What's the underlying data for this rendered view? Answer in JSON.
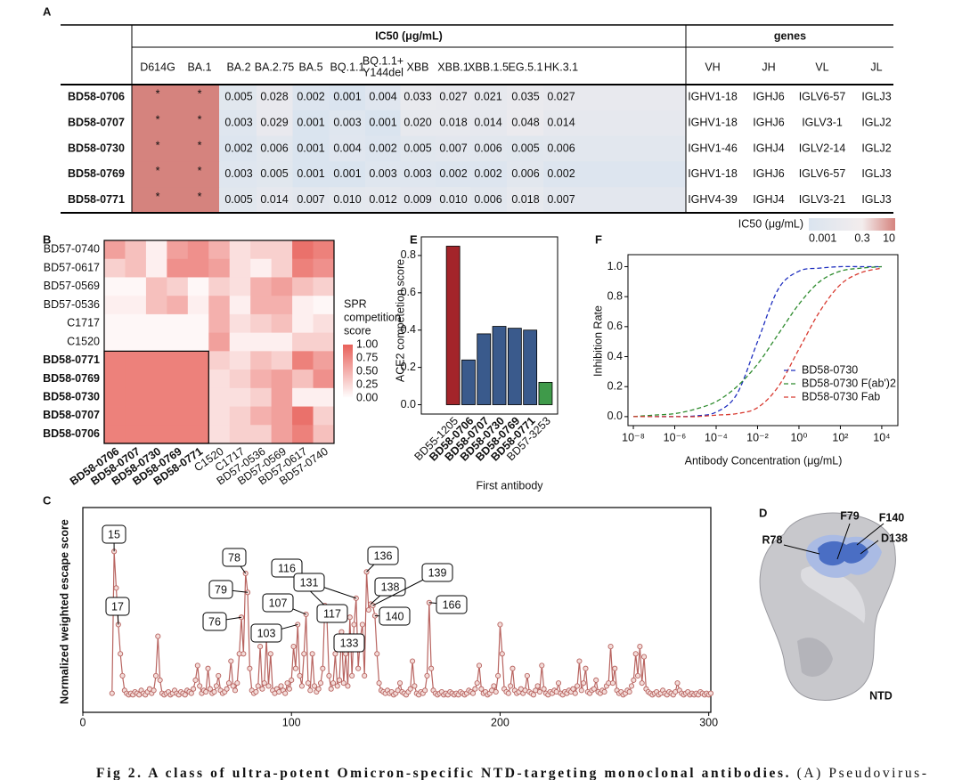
{
  "panel_labels": [
    "A",
    "B",
    "C",
    "D",
    "E",
    "F"
  ],
  "table": {
    "group_headers": [
      "IC50 (μg/mL)",
      "genes"
    ],
    "ic50_columns": [
      "D614G",
      "BA.1",
      "BA.2",
      "BA.2.75",
      "BA.5",
      "BQ.1.1",
      [
        "BQ.1.1+",
        "Y144del"
      ],
      "XBB",
      "XBB.1",
      "XBB.1.5",
      "EG.5.1",
      "HK.3.1"
    ],
    "gene_columns": [
      "VH",
      "JH",
      "VL",
      "JL"
    ],
    "rows": [
      {
        "name": "BD58-0706",
        "ic50": [
          "*",
          "*",
          "0.005",
          "0.028",
          "0.002",
          "0.001",
          "0.004",
          "0.033",
          "0.027",
          "0.021",
          "0.035",
          "0.027"
        ],
        "genes": [
          "IGHV1-18",
          "IGHJ6",
          "IGLV6-57",
          "IGLJ3"
        ]
      },
      {
        "name": "BD58-0707",
        "ic50": [
          "*",
          "*",
          "0.003",
          "0.029",
          "0.001",
          "0.003",
          "0.001",
          "0.020",
          "0.018",
          "0.014",
          "0.048",
          "0.014"
        ],
        "genes": [
          "IGHV1-18",
          "IGHJ6",
          "IGLV3-1",
          "IGLJ2"
        ]
      },
      {
        "name": "BD58-0730",
        "ic50": [
          "*",
          "*",
          "0.002",
          "0.006",
          "0.001",
          "0.004",
          "0.002",
          "0.005",
          "0.007",
          "0.006",
          "0.005",
          "0.006"
        ],
        "genes": [
          "IGHV1-46",
          "IGHJ4",
          "IGLV2-14",
          "IGLJ2"
        ]
      },
      {
        "name": "BD58-0769",
        "ic50": [
          "*",
          "*",
          "0.003",
          "0.005",
          "0.001",
          "0.001",
          "0.003",
          "0.003",
          "0.002",
          "0.002",
          "0.006",
          "0.002"
        ],
        "genes": [
          "IGHV1-18",
          "IGHJ6",
          "IGLV6-57",
          "IGLJ3"
        ]
      },
      {
        "name": "BD58-0771",
        "ic50": [
          "*",
          "*",
          "0.005",
          "0.014",
          "0.007",
          "0.010",
          "0.012",
          "0.009",
          "0.010",
          "0.006",
          "0.018",
          "0.007"
        ],
        "genes": [
          "IGHV4-39",
          "IGHJ4",
          "IGLV3-21",
          "IGLJ3"
        ]
      }
    ],
    "colorscale": {
      "title": "IC50 (μg/mL)",
      "ticks": [
        0.001,
        0.3,
        10
      ],
      "colors": [
        "#dae4ef",
        "#f3eded",
        "#d5837e"
      ]
    }
  },
  "chart_data": [
    {
      "type": "heatmap",
      "rows": [
        "BD57-0740",
        "BD57-0617",
        "BD57-0569",
        "BD57-0536",
        "C1717",
        "C1520",
        "BD58-0771",
        "BD58-0769",
        "BD58-0730",
        "BD58-0707",
        "BD58-0706"
      ],
      "row_bold": [
        false,
        false,
        false,
        false,
        false,
        false,
        true,
        true,
        true,
        true,
        true
      ],
      "columns": [
        "BD58-0706",
        "BD58-0707",
        "BD58-0730",
        "BD58-0769",
        "BD58-0771",
        "C1520",
        "C1717",
        "BD57-0536",
        "BD57-0569",
        "BD57-0617",
        "BD57-0740"
      ],
      "column_bold": [
        true,
        true,
        true,
        true,
        true,
        false,
        false,
        false,
        false,
        false,
        false
      ],
      "values": [
        [
          0.6,
          0.4,
          0.1,
          0.6,
          0.7,
          0.5,
          0.2,
          0.3,
          0.3,
          0.9,
          0.8
        ],
        [
          0.3,
          0.4,
          0.1,
          0.7,
          0.7,
          0.6,
          0.2,
          0.1,
          0.3,
          0.8,
          0.7
        ],
        [
          0.05,
          0.05,
          0.4,
          0.3,
          0.05,
          0.3,
          0.2,
          0.5,
          0.6,
          0.4,
          0.3
        ],
        [
          0.1,
          0.1,
          0.4,
          0.5,
          0.1,
          0.5,
          0.1,
          0.5,
          0.5,
          0.1,
          0.05
        ],
        [
          0.05,
          0.05,
          0.05,
          0.05,
          0.05,
          0.5,
          0.2,
          0.3,
          0.4,
          0.1,
          0.2
        ],
        [
          0.05,
          0.05,
          0.05,
          0.05,
          0.05,
          0.6,
          0.1,
          0.1,
          0.1,
          0.3,
          0.3
        ],
        [
          0.8,
          0.8,
          0.8,
          0.8,
          0.8,
          0.3,
          0.2,
          0.4,
          0.3,
          0.8,
          0.6
        ],
        [
          0.8,
          0.8,
          0.8,
          0.8,
          0.8,
          0.2,
          0.3,
          0.5,
          0.6,
          0.4,
          0.7
        ],
        [
          0.8,
          0.8,
          0.8,
          0.8,
          0.8,
          0.2,
          0.2,
          0.3,
          0.6,
          0.1,
          0.1
        ],
        [
          0.8,
          0.8,
          0.8,
          0.8,
          0.8,
          0.2,
          0.3,
          0.5,
          0.6,
          0.9,
          0.3
        ],
        [
          0.8,
          0.8,
          0.8,
          0.8,
          0.8,
          0.2,
          0.3,
          0.3,
          0.6,
          0.8,
          0.4
        ]
      ],
      "zlim": [
        0,
        1
      ],
      "colors": [
        "#ffffff",
        "#e8615a"
      ],
      "colorbar": {
        "title_lines": [
          "SPR",
          "competition",
          "score"
        ],
        "ticks": [
          {
            "value": 1,
            "label": "1.00"
          },
          {
            "value": 0.75,
            "label": "0.75"
          },
          {
            "value": 0.5,
            "label": "0.50"
          },
          {
            "value": 0.25,
            "label": "0.25"
          },
          {
            "value": 0,
            "label": "0.00"
          }
        ]
      }
    },
    {
      "type": "bar",
      "ylabel": "ACE2 competetion score",
      "xlabel": "First antibody",
      "categories": [
        "BD55-1205",
        "BD58-0706",
        "BD58-0707",
        "BD58-0730",
        "BD58-0769",
        "BD58-0771",
        "BD57-3253"
      ],
      "category_bold": [
        false,
        true,
        true,
        true,
        true,
        true,
        false
      ],
      "values": [
        0.85,
        0.24,
        0.38,
        0.42,
        0.41,
        0.4,
        0.12
      ],
      "colors": [
        "#a3242a",
        "#3a5a8c",
        "#3a5a8c",
        "#3a5a8c",
        "#3a5a8c",
        "#3a5a8c",
        "#3f9a4a"
      ],
      "ylim": [
        -0.05,
        0.9
      ],
      "yticks": [
        {
          "value": 0,
          "label": "0.0"
        },
        {
          "value": 0.2,
          "label": "0.2"
        },
        {
          "value": 0.4,
          "label": "0.4"
        },
        {
          "value": 0.6,
          "label": "0.6"
        },
        {
          "value": 0.8,
          "label": "0.8"
        }
      ]
    },
    {
      "type": "line",
      "xlabel": "Antibody Concentration (μg/mL)",
      "ylabel": "Inhibition Rate",
      "log_x": true,
      "dashed": true,
      "legend": "lower right",
      "x": [
        1e-08,
        1e-07,
        1e-06,
        1e-05,
        0.0001,
        0.001,
        0.01,
        0.1,
        1,
        10,
        100,
        1000,
        10000
      ],
      "series": [
        {
          "name": "BD58-0730",
          "color": "#1f2fbf",
          "values": [
            0,
            0,
            0,
            0.005,
            0.03,
            0.15,
            0.5,
            0.85,
            0.97,
            0.99,
            1,
            1,
            1
          ]
        },
        {
          "name": "BD58-0730 F(ab')2",
          "color": "#2e8b2e",
          "values": [
            0,
            0.01,
            0.02,
            0.05,
            0.1,
            0.2,
            0.35,
            0.55,
            0.75,
            0.9,
            0.97,
            0.99,
            1
          ]
        },
        {
          "name": "BD58-0730 Fab",
          "color": "#d83a30",
          "values": [
            0,
            0,
            0,
            0,
            0.01,
            0.02,
            0.06,
            0.2,
            0.45,
            0.7,
            0.88,
            0.96,
            0.99
          ]
        }
      ],
      "xlim": [
        5.5e-09,
        60000.0
      ],
      "xticks": [
        {
          "value": 1e-08,
          "label": "10⁻⁸"
        },
        {
          "value": 1e-06,
          "label": "10⁻⁶"
        },
        {
          "value": 0.0001,
          "label": "10⁻⁴"
        },
        {
          "value": 0.01,
          "label": "10⁻²"
        },
        {
          "value": 1,
          "label": "10⁰"
        },
        {
          "value": 100,
          "label": "10²"
        },
        {
          "value": 10000,
          "label": "10⁴"
        }
      ],
      "ylim": [
        -0.06,
        1.08
      ],
      "yticks": [
        {
          "value": 0,
          "label": "0.0"
        },
        {
          "value": 0.2,
          "label": "0.2"
        },
        {
          "value": 0.4,
          "label": "0.4"
        },
        {
          "value": 0.6,
          "label": "0.6"
        },
        {
          "value": 0.8,
          "label": "0.8"
        },
        {
          "value": 1,
          "label": "1.0"
        }
      ]
    },
    {
      "type": "escape",
      "ylabel": "Normalized weighted escape score",
      "color": "#b86460",
      "x": [
        14,
        15,
        16,
        17,
        18,
        19,
        20,
        21,
        22,
        23,
        24,
        25,
        26,
        27,
        28,
        29,
        30,
        31,
        32,
        33,
        34,
        35,
        36,
        37,
        38,
        39,
        40,
        41,
        42,
        43,
        44,
        45,
        46,
        47,
        48,
        49,
        50,
        51,
        52,
        53,
        54,
        55,
        56,
        57,
        58,
        59,
        60,
        61,
        62,
        63,
        64,
        65,
        66,
        67,
        68,
        69,
        70,
        71,
        72,
        73,
        74,
        75,
        76,
        77,
        78,
        79,
        80,
        81,
        82,
        83,
        84,
        85,
        86,
        87,
        88,
        89,
        90,
        91,
        92,
        93,
        94,
        95,
        96,
        97,
        98,
        99,
        100,
        101,
        102,
        103,
        104,
        105,
        106,
        107,
        108,
        109,
        110,
        111,
        112,
        113,
        114,
        115,
        116,
        117,
        118,
        119,
        120,
        121,
        122,
        123,
        124,
        125,
        126,
        127,
        128,
        129,
        130,
        131,
        132,
        133,
        134,
        135,
        136,
        137,
        138,
        139,
        140,
        141,
        142,
        143,
        144,
        145,
        146,
        147,
        148,
        149,
        150,
        151,
        152,
        153,
        154,
        155,
        156,
        157,
        158,
        159,
        160,
        161,
        162,
        163,
        164,
        165,
        166,
        167,
        168,
        169,
        170,
        171,
        172,
        173,
        174,
        175,
        176,
        177,
        178,
        179,
        180,
        181,
        182,
        183,
        184,
        185,
        186,
        187,
        188,
        189,
        190,
        191,
        192,
        193,
        194,
        195,
        196,
        197,
        198,
        199,
        200,
        201,
        202,
        203,
        204,
        205,
        206,
        207,
        208,
        209,
        210,
        211,
        212,
        213,
        214,
        215,
        216,
        217,
        218,
        219,
        220,
        221,
        222,
        223,
        224,
        225,
        226,
        227,
        228,
        229,
        230,
        231,
        232,
        233,
        234,
        235,
        236,
        237,
        238,
        239,
        240,
        241,
        242,
        243,
        244,
        245,
        246,
        247,
        248,
        249,
        250,
        251,
        252,
        253,
        254,
        255,
        256,
        257,
        258,
        259,
        260,
        261,
        262,
        263,
        264,
        265,
        266,
        267,
        268,
        269,
        270,
        271,
        272,
        273,
        274,
        275,
        276,
        277,
        278,
        279,
        280,
        281,
        282,
        283,
        284,
        285,
        286,
        287,
        288,
        289,
        290,
        291,
        292,
        293,
        294,
        295,
        296,
        297,
        298,
        299,
        300,
        301
      ],
      "values": [
        0.03,
        1.0,
        0.75,
        0.5,
        0.3,
        0.15,
        0.05,
        0.03,
        0.02,
        0.03,
        0.02,
        0.04,
        0.03,
        0.02,
        0.05,
        0.03,
        0.02,
        0.04,
        0.06,
        0.03,
        0.05,
        0.15,
        0.42,
        0.12,
        0.03,
        0.02,
        0.03,
        0.04,
        0.02,
        0.03,
        0.05,
        0.03,
        0.02,
        0.04,
        0.03,
        0.02,
        0.05,
        0.04,
        0.03,
        0.06,
        0.12,
        0.22,
        0.08,
        0.03,
        0.05,
        0.04,
        0.2,
        0.06,
        0.03,
        0.04,
        0.08,
        0.15,
        0.05,
        0.03,
        0.04,
        0.06,
        0.1,
        0.25,
        0.08,
        0.05,
        0.1,
        0.3,
        0.55,
        0.3,
        0.85,
        0.72,
        0.2,
        0.05,
        0.03,
        0.04,
        0.08,
        0.35,
        0.06,
        0.1,
        0.4,
        0.08,
        0.3,
        0.05,
        0.03,
        0.06,
        0.04,
        0.08,
        0.05,
        0.03,
        0.1,
        0.06,
        0.12,
        0.35,
        0.2,
        0.5,
        0.15,
        0.08,
        0.3,
        0.57,
        0.1,
        0.05,
        0.3,
        0.08,
        0.04,
        0.06,
        0.1,
        0.2,
        0.63,
        0.54,
        0.15,
        0.06,
        0.1,
        0.3,
        0.08,
        0.12,
        0.45,
        0.1,
        0.3,
        0.08,
        0.55,
        0.15,
        0.5,
        0.68,
        0.2,
        0.41,
        0.5,
        0.15,
        0.86,
        0.6,
        0.64,
        0.63,
        0.56,
        0.3,
        0.1,
        0.05,
        0.04,
        0.03,
        0.05,
        0.03,
        0.04,
        0.02,
        0.03,
        0.05,
        0.1,
        0.04,
        0.03,
        0.02,
        0.04,
        0.06,
        0.25,
        0.08,
        0.03,
        0.02,
        0.04,
        0.03,
        0.05,
        0.15,
        0.65,
        0.2,
        0.05,
        0.03,
        0.02,
        0.03,
        0.04,
        0.02,
        0.03,
        0.02,
        0.04,
        0.03,
        0.02,
        0.03,
        0.02,
        0.04,
        0.03,
        0.02,
        0.03,
        0.05,
        0.04,
        0.03,
        0.06,
        0.1,
        0.22,
        0.06,
        0.03,
        0.04,
        0.02,
        0.03,
        0.05,
        0.08,
        0.04,
        0.15,
        0.5,
        0.3,
        0.06,
        0.04,
        0.03,
        0.08,
        0.2,
        0.05,
        0.03,
        0.04,
        0.06,
        0.03,
        0.05,
        0.15,
        0.04,
        0.03,
        0.02,
        0.05,
        0.08,
        0.04,
        0.22,
        0.06,
        0.03,
        0.02,
        0.04,
        0.03,
        0.05,
        0.04,
        0.1,
        0.03,
        0.02,
        0.04,
        0.03,
        0.05,
        0.04,
        0.06,
        0.03,
        0.08,
        0.25,
        0.05,
        0.1,
        0.2,
        0.04,
        0.03,
        0.05,
        0.06,
        0.12,
        0.04,
        0.03,
        0.05,
        0.04,
        0.08,
        0.1,
        0.35,
        0.1,
        0.2,
        0.05,
        0.03,
        0.04,
        0.02,
        0.03,
        0.05,
        0.04,
        0.08,
        0.12,
        0.3,
        0.15,
        0.35,
        0.1,
        0.28,
        0.06,
        0.04,
        0.03,
        0.02,
        0.03,
        0.04,
        0.02,
        0.03,
        0.05,
        0.03,
        0.02,
        0.04,
        0.03,
        0.02,
        0.04,
        0.1,
        0.05,
        0.03,
        0.02,
        0.03,
        0.04,
        0.02,
        0.03,
        0.02,
        0.03,
        0.02,
        0.04,
        0.03,
        0.02,
        0.03,
        0.02,
        0.03
      ],
      "xlim": [
        0,
        301
      ],
      "xticks": [
        0,
        100,
        200,
        300
      ],
      "ylim": [
        -0.1,
        1.3
      ],
      "annotations": [
        "15",
        "17",
        "78",
        "79",
        "76",
        "116",
        "107",
        "103",
        "131",
        "117",
        "136",
        "138",
        "139",
        "140",
        "133",
        "166"
      ]
    }
  ],
  "structure": {
    "labels": [
      "F79",
      "F140",
      "R78",
      "D138"
    ],
    "name": "NTD"
  },
  "caption": {
    "bold": "Fig 2. A class of ultra-potent Omicron-specific NTD-targeting monoclonal antibodies.",
    "text": " (A) Pseudovirus-"
  }
}
